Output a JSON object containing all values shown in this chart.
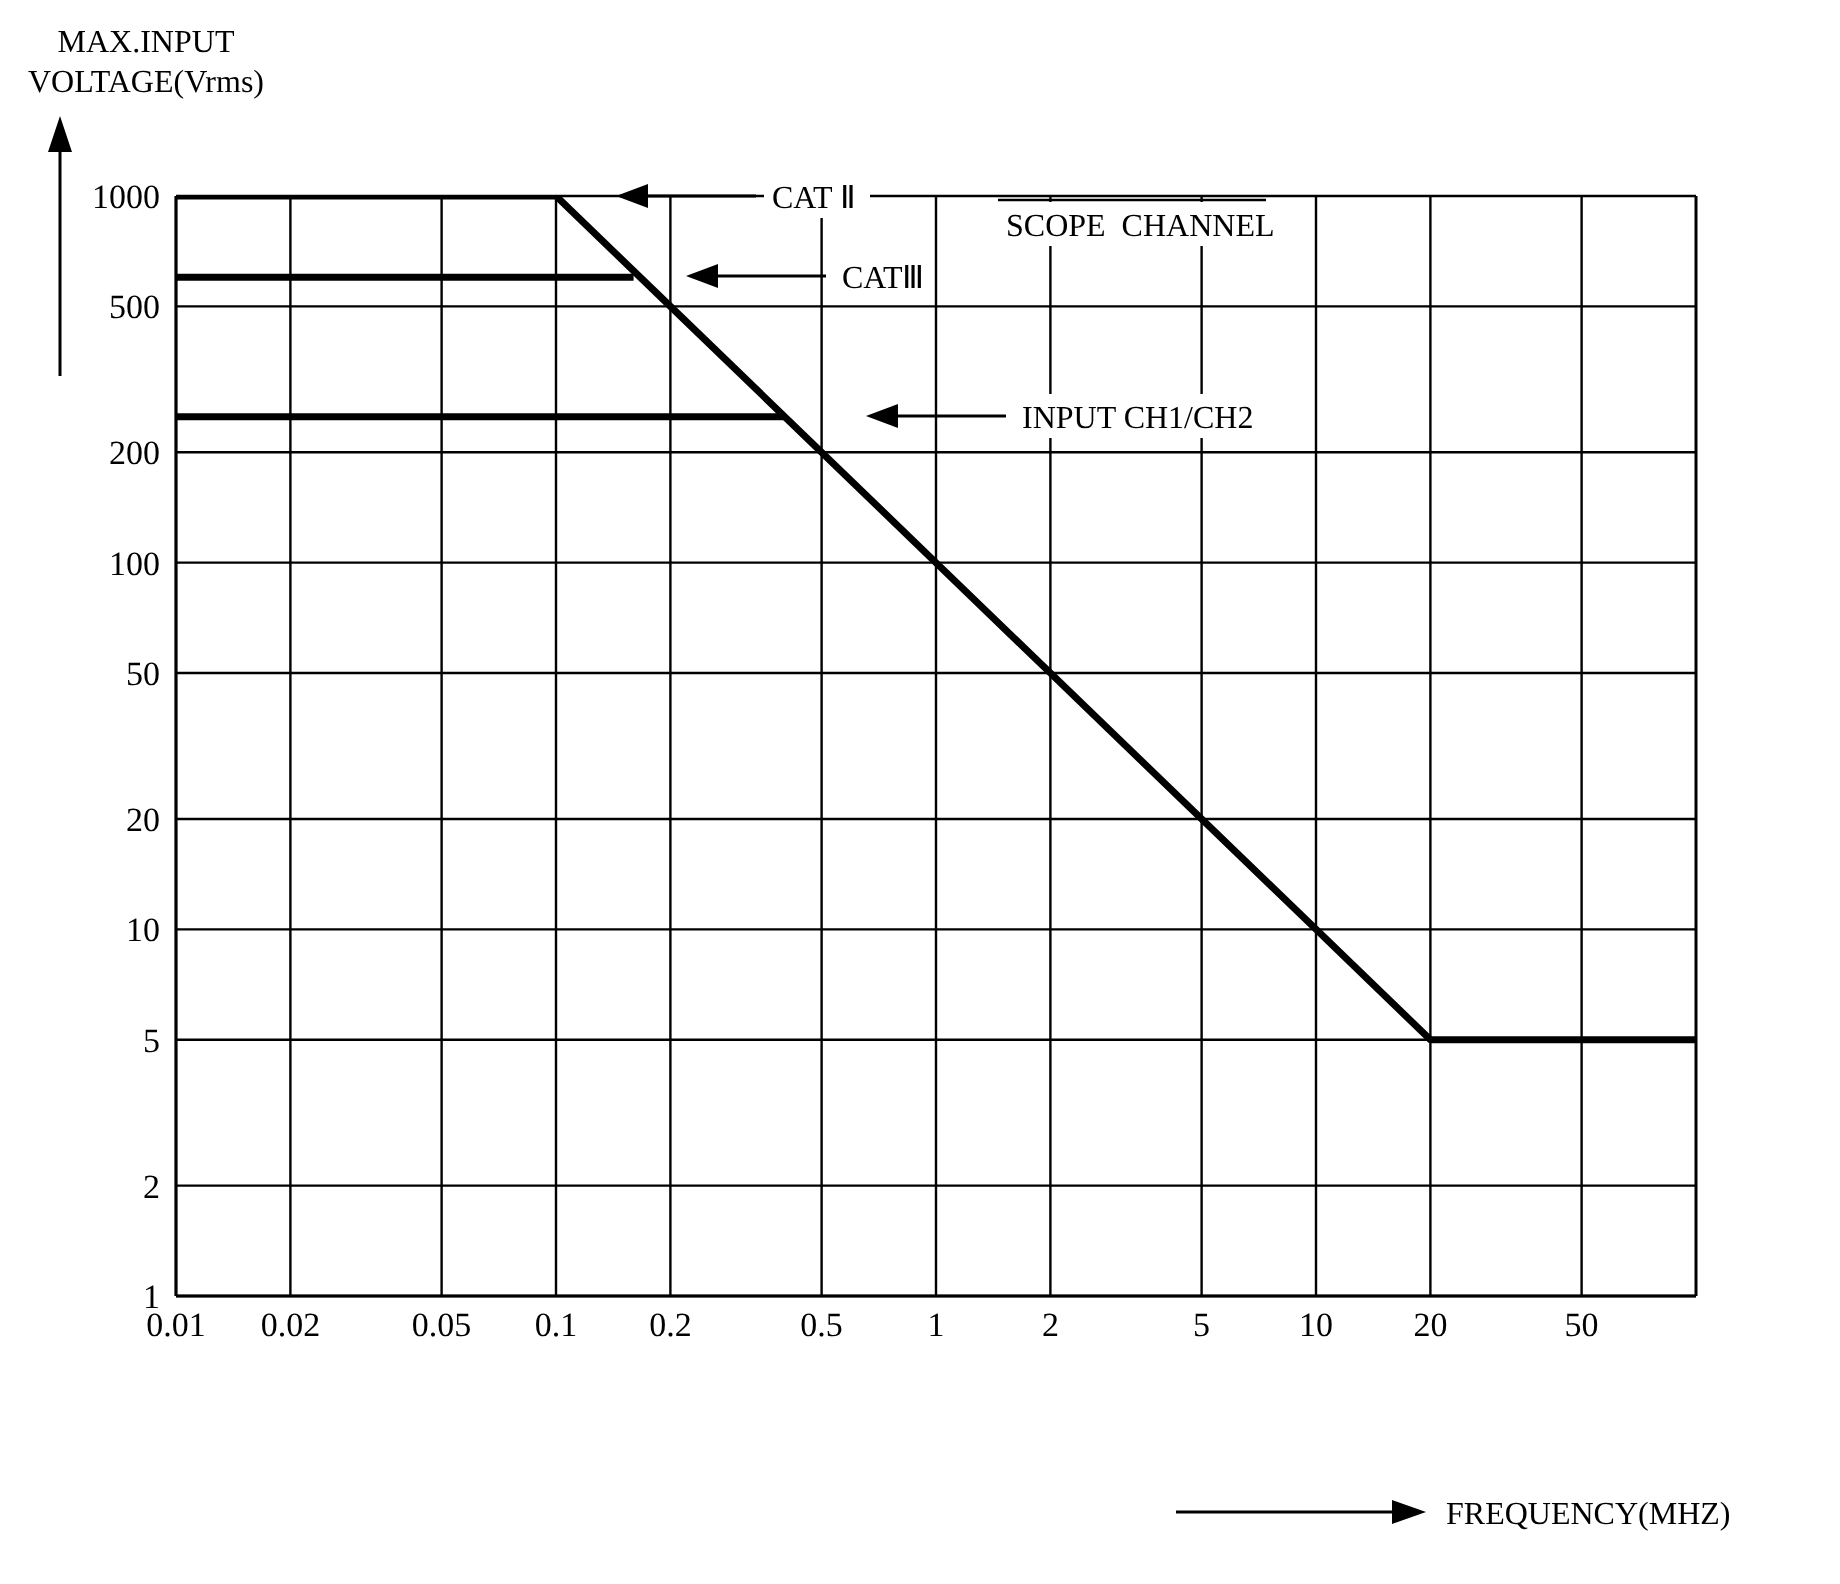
{
  "chart_data": {
    "type": "line",
    "xlabel": "FREQUENCY(MHZ)",
    "ylabel": "MAX.INPUT VOLTAGE(Vrms)",
    "log": "xy",
    "grid": true,
    "marker": "none",
    "line_style": "solid",
    "xlim": [
      0.01,
      100
    ],
    "xticks": [
      0.01,
      0.02,
      0.05,
      0.1,
      0.2,
      0.5,
      1,
      2,
      5,
      10,
      20,
      50
    ],
    "ylim": [
      1,
      1000
    ],
    "yticks": [
      1,
      2,
      5,
      10,
      20,
      50,
      100,
      200,
      500,
      1000
    ],
    "series": [
      {
        "color": "#000000",
        "x": [
          0.01,
          0.1,
          0.2,
          1,
          2,
          10,
          20,
          100
        ],
        "values": [
          1000,
          1000,
          500,
          100,
          50,
          10,
          5,
          5
        ]
      },
      {
        "color": "#000000",
        "x": [
          0.01,
          0.16
        ],
        "values": [
          600,
          600
        ]
      },
      {
        "color": "#000000",
        "x": [
          0.01,
          0.4
        ],
        "values": [
          250,
          250
        ]
      }
    ],
    "annotations": [
      "CAT Ⅱ",
      "CATⅢ",
      "INPUT CH1/CH2",
      "SCOPE  CHANNEL"
    ]
  }
}
